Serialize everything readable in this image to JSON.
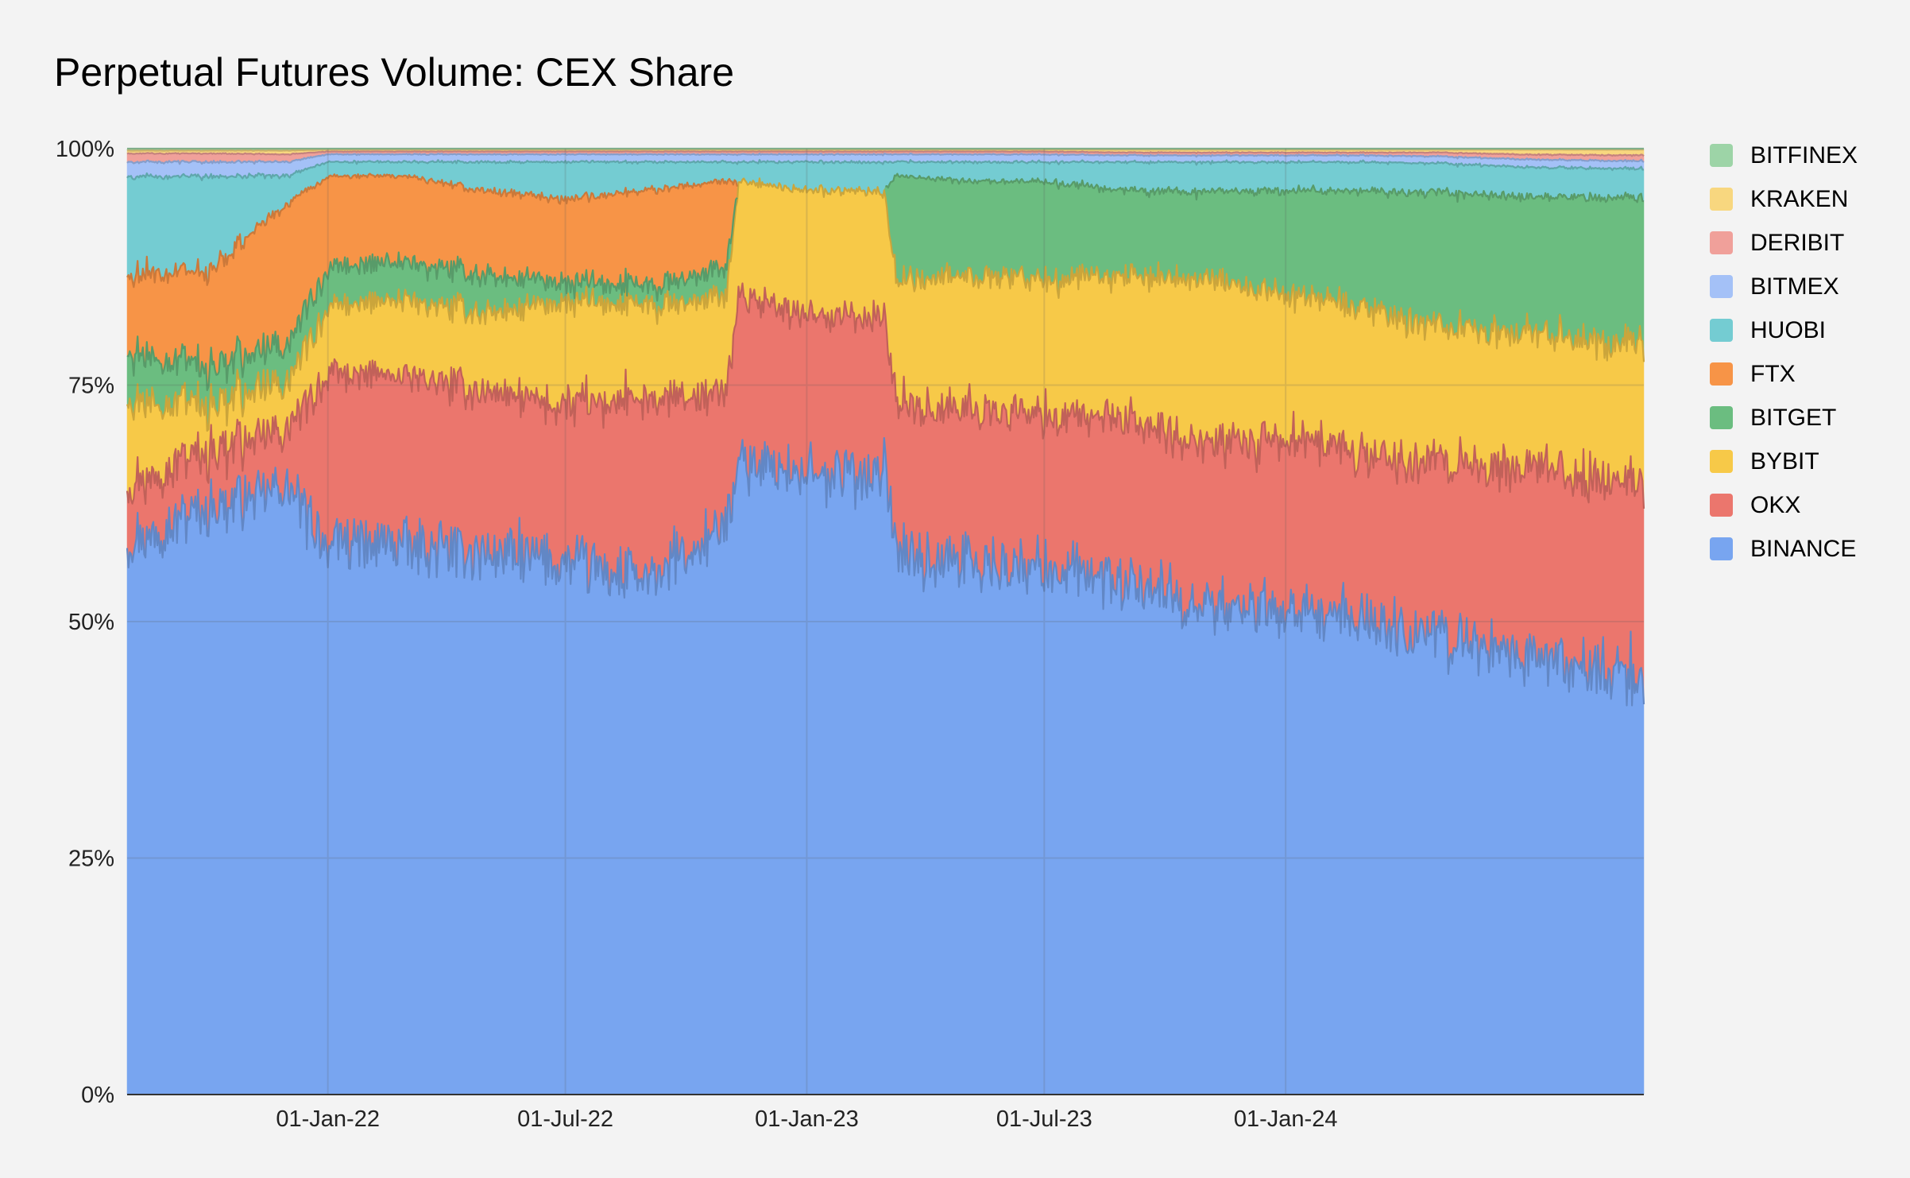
{
  "chart_data": {
    "type": "area",
    "stacked": true,
    "normalized": true,
    "title": "Perpetual Futures Volume: CEX Share",
    "xlabel": "",
    "ylabel": "",
    "x_range": [
      "2021-08-01",
      "2024-09-30"
    ],
    "ylim": [
      0,
      100
    ],
    "y_ticks": [
      "0%",
      "25%",
      "50%",
      "75%",
      "100%"
    ],
    "x_ticks": [
      {
        "label": "01-Jan-22",
        "date": "2022-01-01"
      },
      {
        "label": "01-Jul-22",
        "date": "2022-07-01"
      },
      {
        "label": "01-Jan-23",
        "date": "2023-01-01"
      },
      {
        "label": "01-Jul-23",
        "date": "2023-07-01"
      },
      {
        "label": "01-Jan-24",
        "date": "2024-01-01"
      }
    ],
    "grid": true,
    "legend_position": "right",
    "legend_order": [
      "BITFINEX",
      "KRAKEN",
      "DERIBIT",
      "BITMEX",
      "HUOBI",
      "FTX",
      "BITGET",
      "BYBIT",
      "OKX",
      "BINANCE"
    ],
    "dates": [
      "2021-08-01",
      "2021-10-01",
      "2021-12-01",
      "2022-01-01",
      "2022-03-01",
      "2022-05-01",
      "2022-07-01",
      "2022-09-01",
      "2022-11-01",
      "2022-11-10",
      "2023-01-01",
      "2023-03-01",
      "2023-03-10",
      "2023-05-01",
      "2023-07-01",
      "2023-09-01",
      "2023-11-01",
      "2024-01-01",
      "2024-03-01",
      "2024-05-01",
      "2024-07-01",
      "2024-09-30"
    ],
    "series": [
      {
        "name": "BINANCE",
        "color": "#78a5f0",
        "values": [
          58,
          62,
          64,
          58,
          58,
          57,
          56,
          54,
          60,
          67,
          65,
          66,
          58,
          56,
          55,
          53,
          51,
          50,
          49,
          47,
          45,
          43
        ]
      },
      {
        "name": "OKX",
        "color": "#eb766d",
        "values": [
          6,
          6,
          6,
          18,
          18,
          17,
          16,
          19,
          14,
          17,
          17,
          16,
          16,
          16,
          16,
          17,
          17,
          18,
          17,
          18,
          19,
          20
        ]
      },
      {
        "name": "BYBIT",
        "color": "#f7c948",
        "values": [
          9,
          5,
          5,
          7,
          8,
          8,
          11,
          10,
          10,
          12,
          13,
          13,
          13,
          14,
          14,
          15,
          17,
          15,
          15,
          14,
          14,
          14
        ]
      },
      {
        "name": "BITGET",
        "color": "#6bbd80",
        "values": [
          5,
          4,
          4,
          4,
          4,
          4,
          2,
          2,
          3,
          0,
          0,
          0,
          11,
          10,
          10,
          9,
          9,
          11,
          12,
          14,
          14,
          15
        ]
      },
      {
        "name": "FTX",
        "color": "#f79447",
        "values": [
          8,
          10,
          15,
          10,
          9,
          9,
          9,
          10,
          9,
          0,
          0,
          0,
          0,
          0,
          0,
          0,
          0,
          0,
          0,
          0,
          0,
          0
        ]
      },
      {
        "name": "HUOBI",
        "color": "#74ccd2",
        "values": [
          10,
          10,
          3,
          1.5,
          1.5,
          3,
          4,
          3,
          2,
          2,
          3,
          3,
          1.5,
          2,
          2,
          3,
          3,
          3,
          3,
          3,
          3,
          3
        ]
      },
      {
        "name": "BITMEX",
        "color": "#a4c1f7",
        "values": [
          1.5,
          1.5,
          1.5,
          0.8,
          0.8,
          0.8,
          0.8,
          0.8,
          0.8,
          0.8,
          0.8,
          0.8,
          0.8,
          0.8,
          0.8,
          0.7,
          0.7,
          0.7,
          0.7,
          0.7,
          0.8,
          0.8
        ]
      },
      {
        "name": "DERIBIT",
        "color": "#f0a09a",
        "values": [
          0.9,
          0.9,
          0.8,
          0.3,
          0.3,
          0.3,
          0.3,
          0.3,
          0.3,
          0.3,
          0.3,
          0.3,
          0.3,
          0.3,
          0.3,
          0.3,
          0.3,
          0.3,
          0.3,
          0.4,
          0.5,
          0.6
        ]
      },
      {
        "name": "KRAKEN",
        "color": "#f8d77f",
        "values": [
          0.3,
          0.3,
          0.4,
          0.2,
          0.2,
          0.2,
          0.2,
          0.2,
          0.2,
          0.2,
          0.2,
          0.2,
          0.2,
          0.2,
          0.2,
          0.3,
          0.3,
          0.3,
          0.3,
          0.3,
          0.5,
          0.6
        ]
      },
      {
        "name": "BITFINEX",
        "color": "#9dd4a7",
        "values": [
          0.2,
          0.2,
          0.2,
          0.1,
          0.1,
          0.1,
          0.1,
          0.1,
          0.1,
          0.1,
          0.1,
          0.1,
          0.1,
          0.1,
          0.1,
          0.1,
          0.1,
          0.1,
          0.1,
          0.1,
          0.1,
          0.1
        ]
      }
    ]
  }
}
